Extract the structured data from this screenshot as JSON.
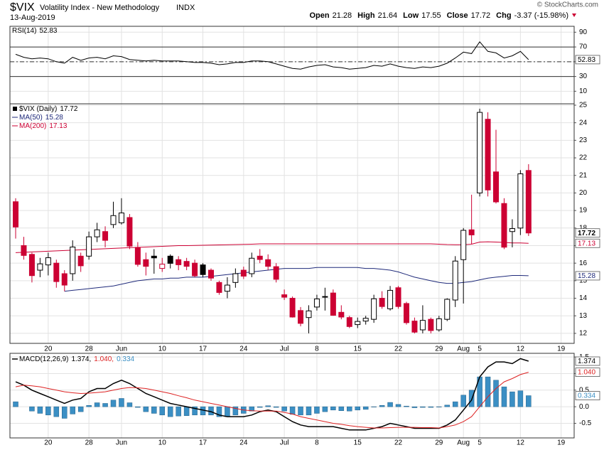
{
  "header": {
    "symbol": "$VIX",
    "name": "Volatility Index - New Methodology",
    "exchange": "INDX",
    "date": "13-Aug-2019",
    "copyright": "© StockCharts.com",
    "quote": [
      {
        "label": "Open",
        "value": "21.28"
      },
      {
        "label": "High",
        "value": "21.64"
      },
      {
        "label": "Low",
        "value": "17.55"
      },
      {
        "label": "Close",
        "value": "17.72"
      },
      {
        "label": "Chg",
        "value": "-3.37 (-15.98%)"
      }
    ]
  },
  "chart_data": [
    {
      "type": "line",
      "ylim": [
        -7,
        98
      ],
      "yticks": [
        10,
        30,
        50,
        70,
        90
      ],
      "levels": [
        70,
        50,
        30
      ],
      "grid": true,
      "series": [
        {
          "name": "RSI(14)",
          "last_label": "52.83",
          "color": "#000000",
          "values": [
            60,
            56,
            54,
            55,
            54,
            50,
            48,
            56,
            52,
            55,
            56,
            54,
            58,
            57,
            53,
            52,
            51,
            52,
            51,
            51,
            51,
            50,
            49,
            49,
            48,
            46,
            47,
            49,
            49,
            51,
            51,
            50,
            47,
            44,
            41,
            40,
            43,
            45,
            46,
            43,
            42,
            40,
            41,
            42,
            45,
            44,
            47,
            44,
            42,
            41,
            43,
            42,
            44,
            48,
            55,
            63,
            61,
            77,
            64,
            62,
            55,
            58,
            64,
            52.83
          ]
        }
      ]
    },
    {
      "type": "candlestick",
      "name": "$VIX (Daily)",
      "last_label": "17.72",
      "up_color": "#000000",
      "down_color": "#cc0033",
      "ylim": [
        11.43,
        25.08
      ],
      "yticks": [
        12,
        13,
        14,
        15,
        16,
        17,
        18,
        19,
        20,
        21,
        22,
        23,
        24,
        25
      ],
      "grid": true,
      "xlim": [
        -0.7,
        68.6
      ],
      "xticks": [
        {
          "value": 4,
          "label": "20"
        },
        {
          "value": 9,
          "label": "28"
        },
        {
          "value": 13,
          "label": "Jun"
        },
        {
          "value": 18,
          "label": "10"
        },
        {
          "value": 23,
          "label": "17"
        },
        {
          "value": 28,
          "label": "24"
        },
        {
          "value": 33,
          "label": "Jul"
        },
        {
          "value": 37,
          "label": "8"
        },
        {
          "value": 42,
          "label": "15"
        },
        {
          "value": 47,
          "label": "22"
        },
        {
          "value": 52,
          "label": "29"
        },
        {
          "value": 55,
          "label": "Aug"
        },
        {
          "value": 57,
          "label": "5"
        },
        {
          "value": 62,
          "label": "12"
        },
        {
          "value": 67,
          "label": "19"
        }
      ],
      "open": [
        19.5,
        17.0,
        16.5,
        15.6,
        15.9,
        16.0,
        15.4,
        15.4,
        16.4,
        16.4,
        17.5,
        17.8,
        18.2,
        18.3,
        18.6,
        16.9,
        16.2,
        16.4,
        15.7,
        16.4,
        16.2,
        16.1,
        16.0,
        15.9,
        15.6,
        14.9,
        14.4,
        14.9,
        15.6,
        15.4,
        16.4,
        16.2,
        15.8,
        14.2,
        14.0,
        13.3,
        12.9,
        13.5,
        14.1,
        14.3,
        13.2,
        12.9,
        12.5,
        12.7,
        12.8,
        14.0,
        13.4,
        14.6,
        13.7,
        12.7,
        12.2,
        12.8,
        12.2,
        12.8,
        13.9,
        16.2,
        17.9,
        20.0,
        24.2,
        21.2,
        19.4,
        17.8,
        18.0,
        21.28
      ],
      "high": [
        19.7,
        17.5,
        16.6,
        16.3,
        16.6,
        16.2,
        15.6,
        17.3,
        16.6,
        17.8,
        18.3,
        18.1,
        19.5,
        19.7,
        18.8,
        17.2,
        16.6,
        16.8,
        16.3,
        16.5,
        16.4,
        16.3,
        16.2,
        16.0,
        15.7,
        15.0,
        15.2,
        15.7,
        15.8,
        16.6,
        16.8,
        16.5,
        16.0,
        14.5,
        14.1,
        13.5,
        13.6,
        14.2,
        14.6,
        14.5,
        13.6,
        13.0,
        12.9,
        13.0,
        14.2,
        14.4,
        14.7,
        14.7,
        13.8,
        12.9,
        13.6,
        12.9,
        13.0,
        14.0,
        16.4,
        18.0,
        19.9,
        24.8,
        24.6,
        23.6,
        19.7,
        18.5,
        21.3,
        21.64
      ],
      "low": [
        17.4,
        16.2,
        14.9,
        15.2,
        15.3,
        14.6,
        14.4,
        15.0,
        15.5,
        16.2,
        17.2,
        16.9,
        18.0,
        18.2,
        16.8,
        15.8,
        15.3,
        15.4,
        15.5,
        15.7,
        15.6,
        15.6,
        15.2,
        15.2,
        15.0,
        14.2,
        14.0,
        14.6,
        15.1,
        15.2,
        16.0,
        15.6,
        14.9,
        13.9,
        12.9,
        12.4,
        12.0,
        13.3,
        13.3,
        13.0,
        12.8,
        12.3,
        12.3,
        12.5,
        12.6,
        13.4,
        13.3,
        13.4,
        12.5,
        12.0,
        12.0,
        12.0,
        12.1,
        12.7,
        13.5,
        13.7,
        17.1,
        19.8,
        19.8,
        19.4,
        16.8,
        16.9,
        17.6,
        17.55
      ],
      "close": [
        18.06,
        16.44,
        15.29,
        15.96,
        16.31,
        14.95,
        14.75,
        16.92,
        15.85,
        17.5,
        17.9,
        17.3,
        18.71,
        18.86,
        16.97,
        15.93,
        15.82,
        16.3,
        15.94,
        15.99,
        15.91,
        15.82,
        15.28,
        15.35,
        15.15,
        14.33,
        14.75,
        15.4,
        15.26,
        16.28,
        16.21,
        15.82,
        15.08,
        14.06,
        12.93,
        12.57,
        13.28,
        13.96,
        14.09,
        13.03,
        12.93,
        12.39,
        12.68,
        12.86,
        13.97,
        13.53,
        14.45,
        13.53,
        12.61,
        12.07,
        12.74,
        12.16,
        12.83,
        13.94,
        16.12,
        17.87,
        17.61,
        24.59,
        20.17,
        19.49,
        16.91,
        17.97,
        21.09,
        17.72
      ],
      "overlays": [
        {
          "name": "MA(50)",
          "last_label": "15.28",
          "color": "#1f2a7a",
          "values": [
            null,
            null,
            null,
            null,
            null,
            null,
            14.4,
            14.45,
            14.5,
            14.55,
            14.6,
            14.65,
            14.7,
            14.8,
            14.9,
            15.0,
            15.05,
            15.1,
            15.1,
            15.15,
            15.15,
            15.2,
            15.2,
            15.2,
            15.25,
            15.3,
            15.35,
            15.4,
            15.45,
            15.5,
            15.55,
            15.6,
            15.65,
            15.7,
            15.7,
            15.7,
            15.7,
            15.75,
            15.75,
            15.75,
            15.75,
            15.75,
            15.75,
            15.7,
            15.7,
            15.65,
            15.6,
            15.5,
            15.35,
            15.2,
            15.1,
            15.0,
            14.9,
            14.85,
            14.85,
            14.9,
            14.95,
            15.05,
            15.15,
            15.2,
            15.25,
            15.3,
            15.3,
            15.28
          ]
        },
        {
          "name": "MA(200)",
          "last_label": "17.13",
          "color": "#cc0033",
          "values": [
            16.6,
            16.62,
            16.64,
            16.66,
            16.68,
            16.7,
            16.72,
            16.74,
            16.76,
            16.78,
            16.8,
            16.82,
            16.84,
            16.86,
            16.88,
            16.9,
            16.92,
            16.94,
            16.96,
            16.98,
            17.0,
            17.0,
            17.01,
            17.02,
            17.03,
            17.04,
            17.05,
            17.06,
            17.07,
            17.08,
            17.1,
            17.1,
            17.1,
            17.1,
            17.1,
            17.1,
            17.1,
            17.1,
            17.1,
            17.1,
            17.1,
            17.1,
            17.1,
            17.1,
            17.1,
            17.1,
            17.1,
            17.1,
            17.1,
            17.1,
            17.1,
            17.1,
            17.08,
            17.06,
            17.05,
            17.05,
            17.08,
            17.2,
            17.22,
            17.2,
            17.18,
            17.15,
            17.15,
            17.13
          ]
        }
      ]
    },
    {
      "type": "macd",
      "ylim": [
        -0.94,
        1.61
      ],
      "yticks": [
        1.5,
        {
          "value": 1,
          "label": "1.0"
        },
        0.5,
        {
          "value": 0,
          "label": "0.0"
        },
        -0.5
      ],
      "grid": true,
      "legend": [
        "MACD(12,26,9)",
        "1.374,",
        "1.040,",
        "0.334"
      ],
      "series": [
        {
          "last_label": "1.374",
          "color": "#000000",
          "values": [
            0.75,
            0.65,
            0.5,
            0.4,
            0.3,
            0.2,
            0.1,
            0.2,
            0.25,
            0.45,
            0.55,
            0.55,
            0.7,
            0.8,
            0.7,
            0.55,
            0.4,
            0.3,
            0.2,
            0.1,
            0.05,
            0.0,
            -0.05,
            -0.1,
            -0.15,
            -0.25,
            -0.3,
            -0.3,
            -0.3,
            -0.25,
            -0.15,
            -0.1,
            -0.15,
            -0.3,
            -0.45,
            -0.55,
            -0.6,
            -0.6,
            -0.6,
            -0.6,
            -0.65,
            -0.7,
            -0.7,
            -0.7,
            -0.65,
            -0.6,
            -0.5,
            -0.55,
            -0.6,
            -0.65,
            -0.65,
            -0.65,
            -0.65,
            -0.55,
            -0.4,
            -0.1,
            0.2,
            0.9,
            1.2,
            1.35,
            1.35,
            1.3,
            1.45,
            1.374
          ]
        },
        {
          "last_label": "1.040",
          "color": "#dd2222",
          "values": [
            0.6,
            0.65,
            0.63,
            0.6,
            0.55,
            0.5,
            0.45,
            0.42,
            0.4,
            0.41,
            0.43,
            0.45,
            0.5,
            0.55,
            0.58,
            0.57,
            0.55,
            0.5,
            0.45,
            0.4,
            0.33,
            0.27,
            0.2,
            0.15,
            0.1,
            0.05,
            0.0,
            -0.05,
            -0.1,
            -0.12,
            -0.13,
            -0.13,
            -0.13,
            -0.17,
            -0.22,
            -0.3,
            -0.35,
            -0.4,
            -0.45,
            -0.5,
            -0.53,
            -0.57,
            -0.6,
            -0.62,
            -0.64,
            -0.64,
            -0.63,
            -0.62,
            -0.62,
            -0.62,
            -0.63,
            -0.63,
            -0.64,
            -0.6,
            -0.55,
            -0.45,
            -0.3,
            0.0,
            0.3,
            0.55,
            0.75,
            0.85,
            0.97,
            1.04
          ]
        },
        {
          "last_label": "0.334",
          "color": "#3b8fc4",
          "histogram": true,
          "values": [
            0.15,
            0.0,
            -0.13,
            -0.2,
            -0.25,
            -0.3,
            -0.35,
            -0.22,
            -0.15,
            0.04,
            0.12,
            0.1,
            0.2,
            0.25,
            0.12,
            -0.02,
            -0.15,
            -0.2,
            -0.25,
            -0.3,
            -0.28,
            -0.27,
            -0.25,
            -0.25,
            -0.25,
            -0.3,
            -0.3,
            -0.25,
            -0.2,
            -0.13,
            -0.02,
            0.03,
            -0.02,
            -0.13,
            -0.23,
            -0.25,
            -0.25,
            -0.2,
            -0.15,
            -0.1,
            -0.12,
            -0.13,
            -0.1,
            -0.08,
            -0.01,
            0.04,
            0.13,
            0.07,
            0.02,
            -0.03,
            -0.02,
            -0.02,
            -0.01,
            0.05,
            0.15,
            0.35,
            0.5,
            0.9,
            0.9,
            0.8,
            0.6,
            0.45,
            0.48,
            0.334
          ]
        }
      ]
    }
  ]
}
